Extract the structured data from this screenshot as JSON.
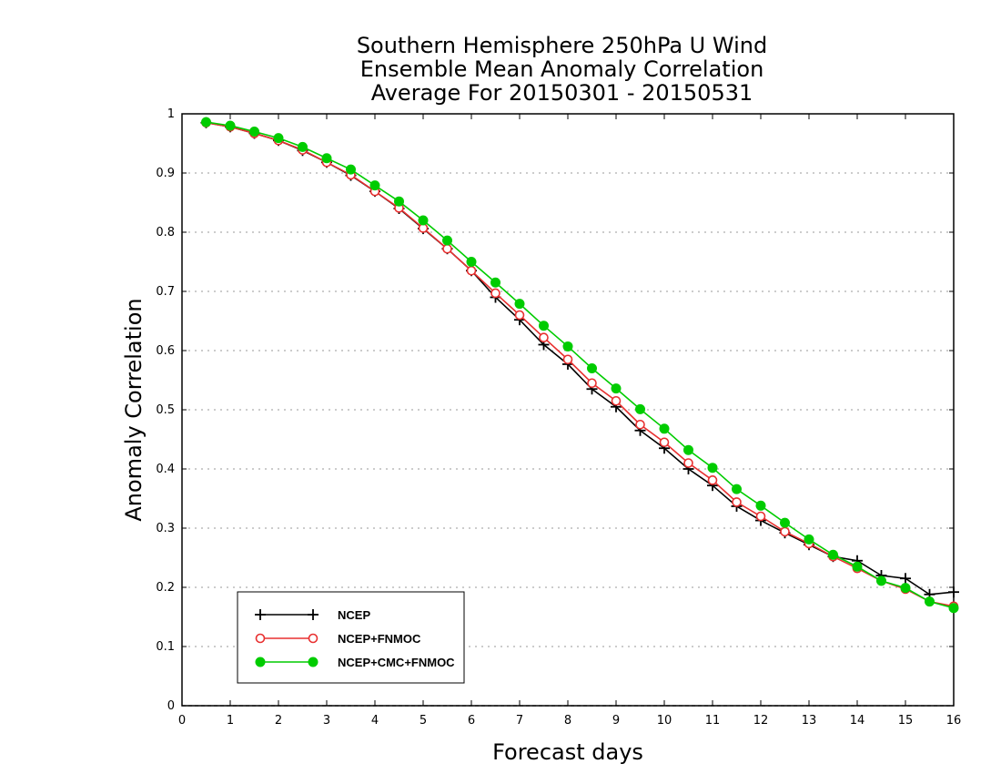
{
  "chart_data": {
    "type": "line",
    "title": [
      "Southern Hemisphere 250hPa U Wind",
      "Ensemble Mean Anomaly Correlation",
      "Average For 20150301 - 20150531"
    ],
    "xlabel": "Forecast days",
    "ylabel": "Anomaly Correlation",
    "xlim": [
      0,
      16
    ],
    "ylim": [
      0,
      1
    ],
    "xticks": [
      "0",
      "1",
      "2",
      "3",
      "4",
      "5",
      "6",
      "7",
      "8",
      "9",
      "10",
      "11",
      "12",
      "13",
      "14",
      "15",
      "16"
    ],
    "yticks": [
      "0",
      "0.1",
      "0.2",
      "0.3",
      "0.4",
      "0.5",
      "0.6",
      "0.7",
      "0.8",
      "0.9",
      "1"
    ],
    "grid": "horizontal dotted",
    "legend_position": "bottom-left",
    "x": [
      0.5,
      1,
      1.5,
      2,
      2.5,
      3,
      3.5,
      4,
      4.5,
      5,
      5.5,
      6,
      6.5,
      7,
      7.5,
      8,
      8.5,
      9,
      9.5,
      10,
      10.5,
      11,
      11.5,
      12,
      12.5,
      13,
      13.5,
      14,
      14.5,
      15,
      15.5,
      16
    ],
    "series": [
      {
        "name": "NCEP",
        "color": "#000000",
        "marker": "plus",
        "values": [
          0.985,
          0.978,
          0.967,
          0.955,
          0.938,
          0.918,
          0.896,
          0.869,
          0.84,
          0.806,
          0.772,
          0.735,
          0.69,
          0.652,
          0.61,
          0.577,
          0.535,
          0.505,
          0.465,
          0.435,
          0.4,
          0.372,
          0.337,
          0.313,
          0.292,
          0.272,
          0.252,
          0.245,
          0.22,
          0.215,
          0.188,
          0.192
        ]
      },
      {
        "name": "NCEP+FNMOC",
        "color": "#e83030",
        "marker": "open-circle",
        "values": [
          0.985,
          0.978,
          0.967,
          0.955,
          0.939,
          0.918,
          0.897,
          0.869,
          0.841,
          0.807,
          0.772,
          0.735,
          0.697,
          0.66,
          0.622,
          0.585,
          0.545,
          0.515,
          0.475,
          0.445,
          0.41,
          0.381,
          0.344,
          0.32,
          0.294,
          0.274,
          0.252,
          0.232,
          0.211,
          0.197,
          0.176,
          0.168
        ]
      },
      {
        "name": "NCEP+CMC+FNMOC",
        "color": "#00cc00",
        "marker": "filled-circle",
        "values": [
          0.986,
          0.98,
          0.97,
          0.959,
          0.944,
          0.925,
          0.906,
          0.879,
          0.852,
          0.82,
          0.786,
          0.75,
          0.715,
          0.679,
          0.642,
          0.607,
          0.57,
          0.536,
          0.501,
          0.468,
          0.432,
          0.402,
          0.366,
          0.338,
          0.309,
          0.281,
          0.255,
          0.235,
          0.211,
          0.199,
          0.176,
          0.165
        ]
      }
    ]
  }
}
